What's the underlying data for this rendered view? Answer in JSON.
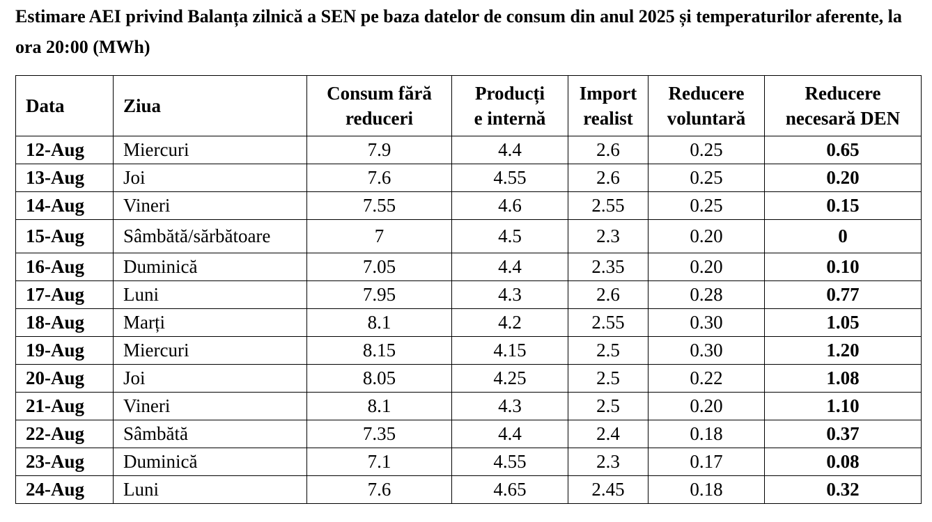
{
  "header": {
    "title": "Estimare AEI privind Balanța zilnică a SEN pe baza datelor de consum din anul 2025 și temperaturilor aferente, la ora 20:00 (MWh)"
  },
  "table": {
    "columns": [
      "Data",
      "Ziua",
      "Consum fără\nreduceri",
      "Producți\ne internă",
      "Import\nrealist",
      "Reducere\nvoluntară",
      "Reducere\nnecesară DEN"
    ],
    "rows": [
      [
        "12-Aug",
        "Miercuri",
        "7.9",
        "4.4",
        "2.6",
        "0.25",
        "0.65"
      ],
      [
        "13-Aug",
        "Joi",
        "7.6",
        "4.55",
        "2.6",
        "0.25",
        "0.20"
      ],
      [
        "14-Aug",
        "Vineri",
        "7.55",
        "4.6",
        "2.55",
        "0.25",
        "0.15"
      ],
      [
        "15-Aug",
        "Sâmbătă/sărbătoare",
        "7",
        "4.5",
        "2.3",
        "0.20",
        "0"
      ],
      [
        "16-Aug",
        "Duminică",
        "7.05",
        "4.4",
        "2.35",
        "0.20",
        "0.10"
      ],
      [
        "17-Aug",
        "Luni",
        "7.95",
        "4.3",
        "2.6",
        "0.28",
        "0.77"
      ],
      [
        "18-Aug",
        "Marți",
        "8.1",
        "4.2",
        "2.55",
        "0.30",
        "1.05"
      ],
      [
        "19-Aug",
        "Miercuri",
        "8.15",
        "4.15",
        "2.5",
        "0.30",
        "1.20"
      ],
      [
        "20-Aug",
        "Joi",
        "8.05",
        "4.25",
        "2.5",
        "0.22",
        "1.08"
      ],
      [
        "21-Aug",
        "Vineri",
        "8.1",
        "4.3",
        "2.5",
        "0.20",
        "1.10"
      ],
      [
        "22-Aug",
        "Sâmbătă",
        "7.35",
        "4.4",
        "2.4",
        "0.18",
        "0.37"
      ],
      [
        "23-Aug",
        "Duminică",
        "7.1",
        "4.55",
        "2.3",
        "0.17",
        "0.08"
      ],
      [
        "24-Aug",
        "Luni",
        "7.6",
        "4.65",
        "2.45",
        "0.18",
        "0.32"
      ]
    ]
  }
}
